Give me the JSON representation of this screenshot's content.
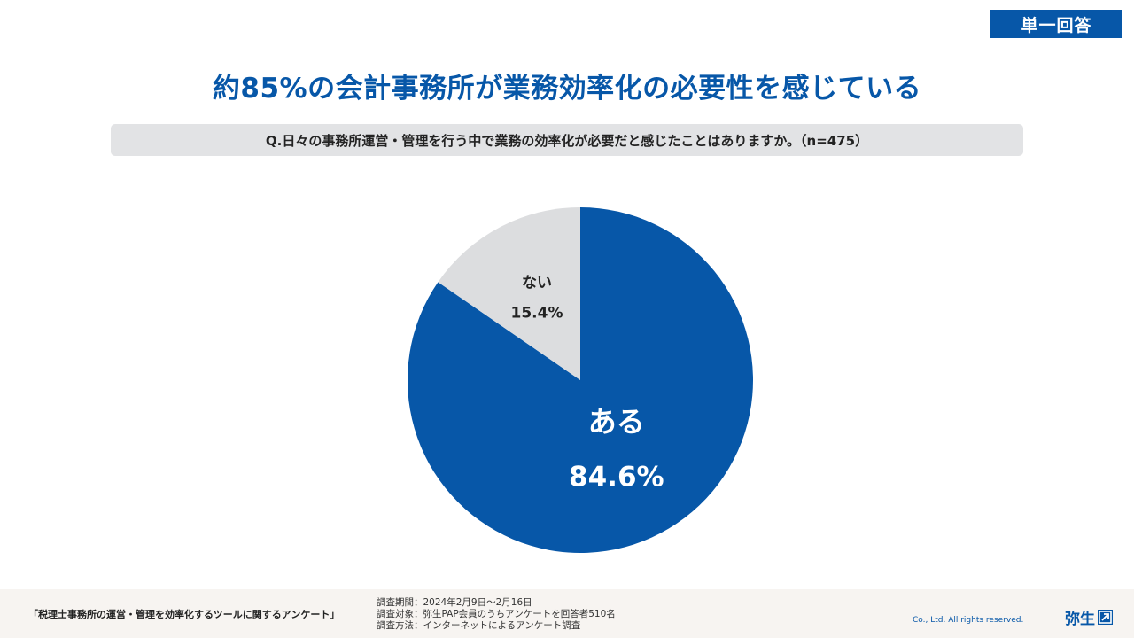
{
  "badge": "単一回答",
  "title": "約85%の会計事務所が業務効率化の必要性を感じている",
  "question": "Q.日々の事務所運営・管理を行う中で業務の効率化が必要だと感じたことはありますか。（n=475）",
  "chart_data": {
    "type": "pie",
    "start": "12 o'clock, clockwise",
    "slices": [
      {
        "label": "ある",
        "value_label": "84.6%",
        "value": 84.6,
        "color": "#0757a8",
        "text_color": "#ffffff"
      },
      {
        "label": "ない",
        "value_label": "15.4%",
        "value": 15.4,
        "color": "#dcdddf",
        "text_color": "#222222"
      }
    ]
  },
  "footer": {
    "survey_name": "「税理士事務所の運営・管理を効率化するツールに関するアンケート」",
    "period": "調査期間：2024年2月9日～2月16日",
    "target": "調査対象：弥生PAP会員のうちアンケートを回答者510名",
    "method": "調査方法：インターネットによるアンケート調査",
    "copyright": "Co., Ltd.  All rights reserved.",
    "logo": "弥生"
  }
}
